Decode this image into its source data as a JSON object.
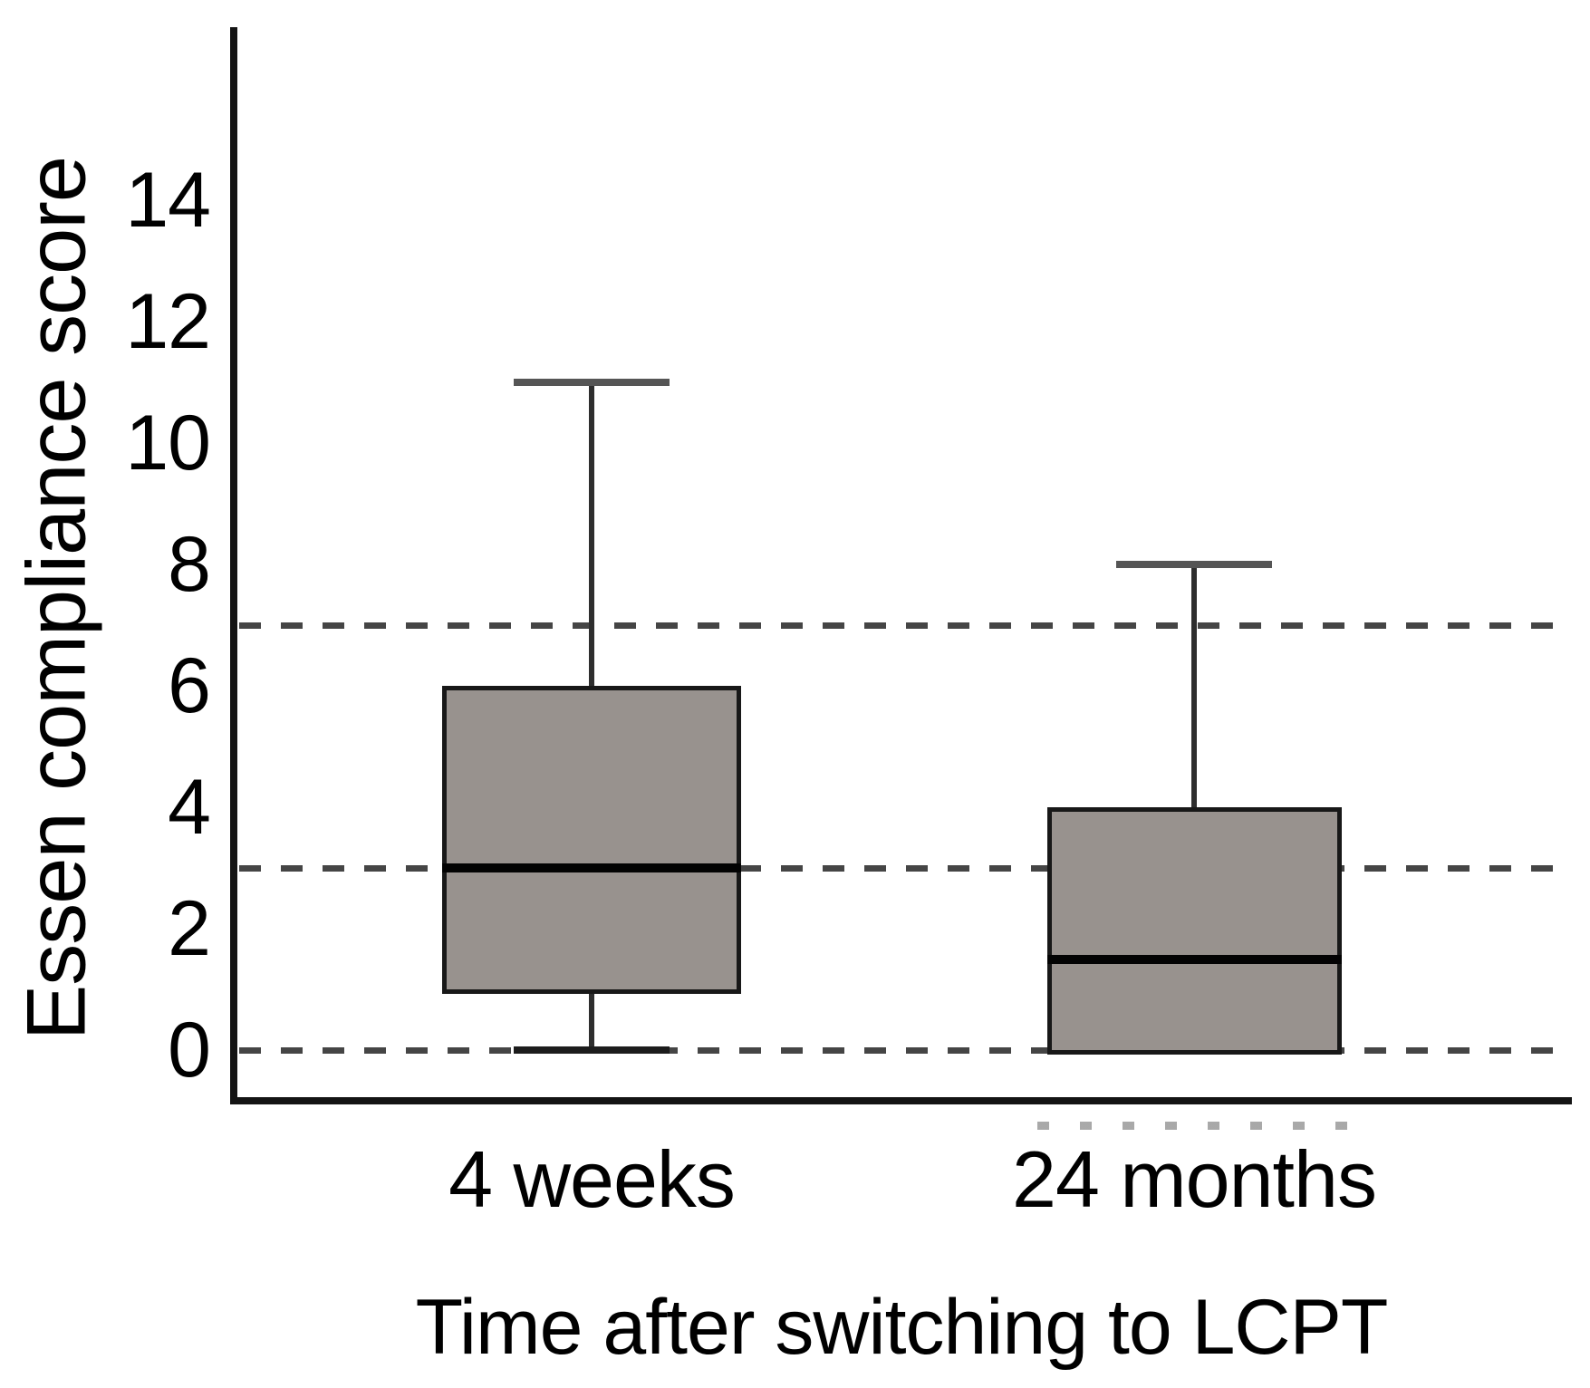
{
  "figure": {
    "background": "#ffffff"
  },
  "chart_data": {
    "type": "box",
    "title": "",
    "xlabel": "Time after switching to LCPT",
    "ylabel": "Essen compliance score",
    "categories": [
      "4 weeks",
      "24 months"
    ],
    "yticks": [
      0,
      2,
      4,
      6,
      8,
      10,
      12,
      14
    ],
    "ylim": [
      -0.9,
      16.8
    ],
    "series": [
      {
        "category": "4 weeks",
        "min": 0,
        "q1": 1,
        "median": 3,
        "q3": 6,
        "max": 11
      },
      {
        "category": "24 months",
        "min": 0,
        "q1": 0,
        "median": 1.5,
        "q3": 4,
        "max": 8
      }
    ],
    "reference_lines": {
      "style": "dashed",
      "values": [
        0,
        3,
        7
      ]
    },
    "grid": false,
    "legend_position": "none",
    "box_fill_color": "#98928e",
    "box_border_color": "#181818",
    "median_color": "#030303",
    "whisker_color": "#2e2e2e",
    "dashed_line_color": "#454545",
    "axis_color": "#141414"
  }
}
